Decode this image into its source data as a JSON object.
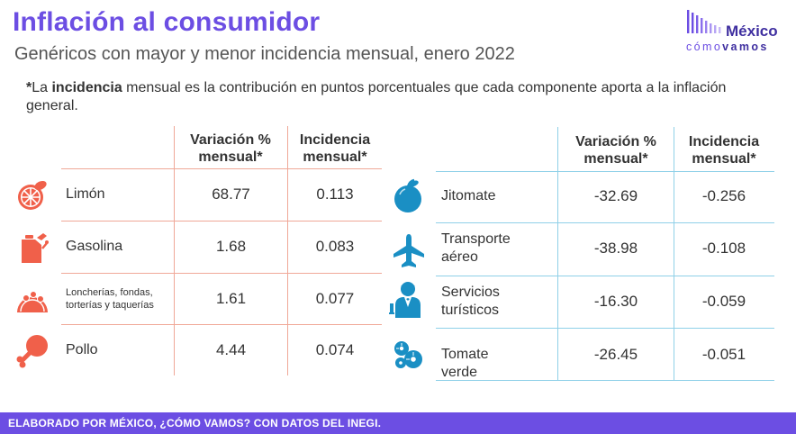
{
  "header": {
    "title": "Inflación al consumidor",
    "subtitle": "Genéricos con mayor y menor incidencia mensual, enero 2022"
  },
  "note": {
    "star": "*",
    "pre": "La ",
    "bold": "incidencia",
    "post": " mensual es la contribución en puntos porcentuales que cada componente aporta a la inflación general."
  },
  "logo": {
    "name": "México",
    "tag_a": "cómo",
    "tag_b": "vamos"
  },
  "columns": {
    "variation": "Variación % mensual*",
    "incidence": "Incidencia mensual*"
  },
  "colors": {
    "accent": "#6c4ee3",
    "left_icon": "#f0604a",
    "right_icon": "#1a8fc4",
    "left_grid": "#f0a898",
    "right_grid": "#8fd0e8"
  },
  "chart_data": [
    {
      "type": "table",
      "columns": [
        "Variación % mensual*",
        "Incidencia mensual*"
      ],
      "rows": [
        {
          "label": "Limón",
          "icon": "lemon-icon",
          "variation": "68.77",
          "incidence": "0.113"
        },
        {
          "label": "Gasolina",
          "icon": "gas-can-icon",
          "variation": "1.68",
          "incidence": "0.083"
        },
        {
          "label": "Loncherías, fondas, torterías y taquerías",
          "icon": "taco-icon",
          "variation": "1.61",
          "incidence": "0.077"
        },
        {
          "label": "Pollo",
          "icon": "chicken-leg-icon",
          "variation": "4.44",
          "incidence": "0.074"
        }
      ]
    },
    {
      "type": "table",
      "columns": [
        "Variación % mensual*",
        "Incidencia mensual*"
      ],
      "rows": [
        {
          "label": "Jitomate",
          "icon": "tomato-icon",
          "variation": "-32.69",
          "incidence": "-0.256"
        },
        {
          "label": "Transporte aéreo",
          "icon": "airplane-icon",
          "variation": "-38.98",
          "incidence": "-0.108"
        },
        {
          "label": "Servicios turísticos",
          "icon": "waiter-icon",
          "variation": "-16.30",
          "incidence": "-0.059"
        },
        {
          "label": "Tomate verde",
          "icon": "green-tomato-icon",
          "variation": "-26.45",
          "incidence": "-0.051"
        }
      ]
    }
  ],
  "footer": {
    "text": "ELABORADO POR MÉXICO, ¿CÓMO VAMOS? CON DATOS DEL INEGI."
  }
}
